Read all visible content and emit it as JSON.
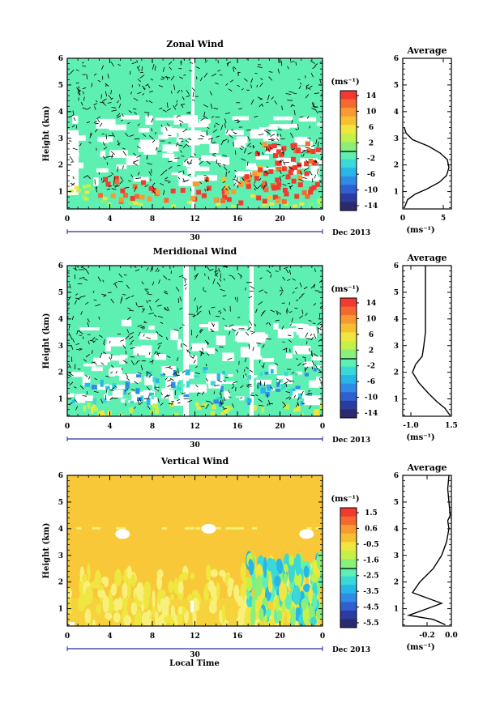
{
  "page": {
    "month_label": "Dec 2013",
    "day_label": "30",
    "xlabel": "Local Time"
  },
  "colors": {
    "colormap": [
      "#2a2a6e",
      "#2b3ba0",
      "#2f5fd0",
      "#2f8be6",
      "#28b6e8",
      "#3ad9d6",
      "#5ef0b2",
      "#8af07a",
      "#c4f04a",
      "#f0e640",
      "#f8c030",
      "#f89a32",
      "#f46a2e",
      "#f23a30"
    ],
    "zonal_background": "#5ef0b2",
    "vertical_background": "#f8c838"
  },
  "chart_data": [
    {
      "type": "heatmap",
      "title": "Zonal Wind",
      "ylabel": "Height (km)",
      "xlim": [
        0,
        24
      ],
      "ylim": [
        0.35,
        6
      ],
      "xticks": [
        "0",
        "4",
        "8",
        "12",
        "16",
        "20",
        "0"
      ],
      "yticks": [
        "1",
        "2",
        "3",
        "4",
        "5",
        "6"
      ],
      "colorbar": {
        "unit_label": "(ms⁻¹)",
        "ticks": [
          "14",
          "10",
          "6",
          "2",
          "-2",
          "-6",
          "-10",
          "-14"
        ],
        "range": [
          -15,
          15
        ]
      }
    },
    {
      "type": "line",
      "title": "Average",
      "xlabel": "(ms⁻¹)",
      "xlim": [
        0,
        6
      ],
      "ylim": [
        0.35,
        6
      ],
      "xticks": [
        "0",
        "5"
      ],
      "yticks": [
        "1",
        "2",
        "3",
        "4",
        "5",
        "6"
      ],
      "x": [
        0.2,
        0.6,
        1.5,
        3.0,
        4.5,
        5.4,
        5.7,
        5.5,
        4.6,
        3.2,
        1.2,
        0.4,
        0.2
      ],
      "y": [
        0.4,
        0.7,
        0.9,
        1.1,
        1.35,
        1.6,
        1.9,
        2.2,
        2.45,
        2.7,
        2.95,
        3.2,
        3.4
      ]
    },
    {
      "type": "heatmap",
      "title": "Meridional Wind",
      "ylabel": "Height (km)",
      "xlim": [
        0,
        24
      ],
      "ylim": [
        0.35,
        6
      ],
      "xticks": [
        "0",
        "4",
        "8",
        "12",
        "16",
        "20",
        "0"
      ],
      "yticks": [
        "1",
        "2",
        "3",
        "4",
        "5",
        "6"
      ],
      "colorbar": {
        "unit_label": "(ms⁻¹)",
        "ticks": [
          "14",
          "10",
          "6",
          "2",
          "-2",
          "-6",
          "-10",
          "-14"
        ],
        "range": [
          -15,
          15
        ]
      }
    },
    {
      "type": "line",
      "title": "Average",
      "xlabel": "(ms⁻¹)",
      "xlim": [
        -1.5,
        1.5
      ],
      "ylim": [
        0.35,
        6
      ],
      "xticks": [
        "-1.0",
        "1.5"
      ],
      "yticks": [
        "1",
        "2",
        "3",
        "4",
        "5",
        "6"
      ],
      "x": [
        1.4,
        1.1,
        0.6,
        0.1,
        -0.5,
        -0.9,
        -0.7,
        -0.3,
        -0.2,
        -0.1,
        -0.1,
        -0.1,
        -0.1,
        -0.1
      ],
      "y": [
        0.4,
        0.65,
        0.9,
        1.2,
        1.6,
        2.0,
        2.3,
        2.6,
        3.0,
        3.5,
        4.0,
        4.5,
        5.0,
        6.0
      ]
    },
    {
      "type": "heatmap",
      "title": "Vertical Wind",
      "ylabel": "Height (km)",
      "xlim": [
        0,
        24
      ],
      "ylim": [
        0.35,
        6
      ],
      "xticks": [
        "0",
        "4",
        "8",
        "12",
        "16",
        "20",
        "0"
      ],
      "yticks": [
        "1",
        "2",
        "3",
        "4",
        "5",
        "6"
      ],
      "colorbar": {
        "unit_label": "(ms⁻¹)",
        "ticks": [
          "1.5",
          "0.6",
          "-0.5",
          "-1.6",
          "-2.5",
          "-3.5",
          "-4.5",
          "-5.5"
        ],
        "range": [
          -6,
          2
        ]
      }
    },
    {
      "type": "line",
      "title": "Average",
      "xlabel": "(ms⁻¹)",
      "xlim": [
        -0.4,
        0.0
      ],
      "ylim": [
        0.35,
        6
      ],
      "xticks": [
        "-0.2",
        "0.0"
      ],
      "yticks": [
        "1",
        "2",
        "3",
        "4",
        "5",
        "6"
      ],
      "x": [
        -0.05,
        -0.15,
        -0.35,
        -0.2,
        -0.08,
        -0.2,
        -0.32,
        -0.26,
        -0.15,
        -0.08,
        -0.04,
        -0.02,
        -0.03,
        -0.01,
        -0.02,
        -0.03,
        -0.02
      ],
      "y": [
        0.4,
        0.6,
        0.75,
        1.0,
        1.2,
        1.4,
        1.6,
        2.0,
        2.5,
        3.0,
        3.5,
        4.0,
        4.3,
        4.5,
        5.0,
        5.5,
        6.0
      ]
    }
  ]
}
